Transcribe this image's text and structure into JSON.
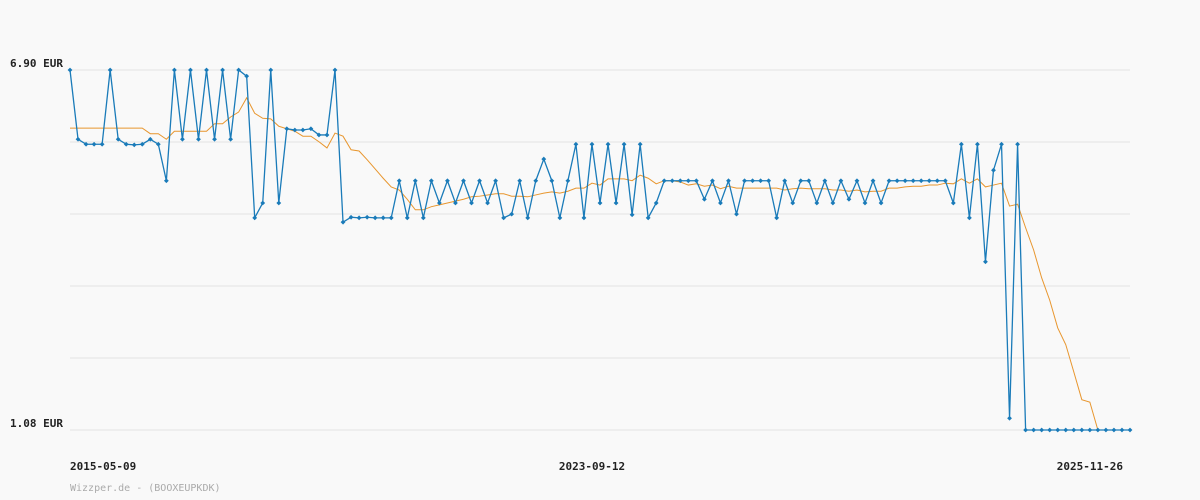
{
  "chart_data": {
    "type": "line",
    "source": "Wizzper.de - (BOOXEUPKDK)",
    "categories": [
      "2015-05-09",
      null,
      null,
      null,
      null,
      null,
      null,
      null,
      null,
      null,
      null,
      null,
      null,
      null,
      null,
      null,
      null,
      null,
      null,
      null,
      null,
      null,
      null,
      null,
      null,
      null,
      null,
      null,
      null,
      null,
      null,
      null,
      null,
      null,
      null,
      null,
      null,
      null,
      null,
      null,
      null,
      null,
      null,
      null,
      null,
      null,
      null,
      null,
      null,
      null,
      null,
      null,
      null,
      null,
      null,
      null,
      null,
      null,
      null,
      null,
      null,
      null,
      null,
      null,
      null,
      "2023-09-12",
      null,
      null,
      null,
      null,
      null,
      null,
      null,
      null,
      null,
      null,
      null,
      null,
      null,
      null,
      null,
      null,
      null,
      null,
      null,
      null,
      null,
      null,
      null,
      null,
      null,
      null,
      null,
      null,
      null,
      null,
      null,
      null,
      null,
      null,
      null,
      null,
      null,
      null,
      null,
      null,
      null,
      null,
      null,
      null,
      null,
      null,
      null,
      null,
      null,
      null,
      null,
      null,
      null,
      null,
      null,
      null,
      null,
      null,
      null,
      null,
      null,
      "2025-11-26",
      null,
      null,
      null,
      null,
      null
    ],
    "series": [
      {
        "color": "#1a7bb9",
        "markers": true,
        "values": [
          6.9,
          5.78,
          5.7,
          5.7,
          5.7,
          6.9,
          5.78,
          5.7,
          5.69,
          5.7,
          5.78,
          5.7,
          5.11,
          6.9,
          5.78,
          6.9,
          5.78,
          6.9,
          5.78,
          6.9,
          5.78,
          6.9,
          6.8,
          4.51,
          4.75,
          6.9,
          4.75,
          5.95,
          5.93,
          5.93,
          5.95,
          5.85,
          5.85,
          6.9,
          4.44,
          4.52,
          4.51,
          4.52,
          4.51,
          4.51,
          4.51,
          5.11,
          4.51,
          5.11,
          4.51,
          5.11,
          4.75,
          5.11,
          4.75,
          5.11,
          4.75,
          5.11,
          4.75,
          5.11,
          4.51,
          4.57,
          5.11,
          4.51,
          5.11,
          5.46,
          5.11,
          4.51,
          5.11,
          5.7,
          4.51,
          5.7,
          4.75,
          5.7,
          4.75,
          5.7,
          4.56,
          5.7,
          4.51,
          4.75,
          5.11,
          5.11,
          5.11,
          5.11,
          5.11,
          4.81,
          5.11,
          4.75,
          5.11,
          4.57,
          5.11,
          5.11,
          5.11,
          5.11,
          4.51,
          5.11,
          4.75,
          5.11,
          5.11,
          4.75,
          5.11,
          4.75,
          5.11,
          4.81,
          5.11,
          4.75,
          5.11,
          4.75,
          5.11,
          5.11,
          5.11,
          5.11,
          5.11,
          5.11,
          5.11,
          5.11,
          4.75,
          5.7,
          4.51,
          5.7,
          3.8,
          5.28,
          5.7,
          1.27,
          5.7,
          1.08,
          1.08,
          1.08,
          1.08,
          1.08,
          1.08,
          1.08,
          1.08,
          1.08,
          1.08,
          1.08,
          1.08,
          1.08,
          1.08
        ]
      },
      {
        "color": "#e8962e",
        "markers": false,
        "values": [
          5.96,
          5.96,
          5.96,
          5.96,
          5.96,
          5.96,
          5.96,
          5.96,
          5.96,
          5.96,
          5.87,
          5.87,
          5.78,
          5.91,
          5.91,
          5.91,
          5.91,
          5.91,
          6.03,
          6.03,
          6.14,
          6.22,
          6.45,
          6.2,
          6.12,
          6.11,
          5.99,
          5.95,
          5.91,
          5.83,
          5.83,
          5.74,
          5.64,
          5.88,
          5.83,
          5.61,
          5.59,
          5.45,
          5.3,
          5.15,
          5.01,
          4.96,
          4.81,
          4.64,
          4.64,
          4.69,
          4.72,
          4.75,
          4.78,
          4.81,
          4.85,
          4.86,
          4.88,
          4.9,
          4.9,
          4.86,
          4.86,
          4.85,
          4.88,
          4.91,
          4.93,
          4.91,
          4.94,
          4.99,
          4.99,
          5.07,
          5.04,
          5.14,
          5.14,
          5.14,
          5.11,
          5.2,
          5.15,
          5.06,
          5.11,
          5.11,
          5.09,
          5.04,
          5.06,
          5.02,
          5.04,
          4.98,
          5.02,
          4.99,
          4.99,
          4.99,
          4.99,
          4.99,
          4.99,
          4.96,
          4.98,
          4.99,
          4.98,
          4.98,
          4.98,
          4.96,
          4.96,
          4.94,
          4.96,
          4.93,
          4.94,
          4.94,
          4.99,
          4.99,
          5.01,
          5.02,
          5.02,
          5.04,
          5.04,
          5.07,
          5.06,
          5.14,
          5.07,
          5.14,
          5.01,
          5.04,
          5.07,
          4.7,
          4.73,
          4.35,
          3.99,
          3.54,
          3.18,
          2.73,
          2.46,
          2.02,
          1.57,
          1.53,
          1.08,
          1.08,
          1.08,
          1.08,
          1.08
        ]
      }
    ],
    "ylim": [
      1.08,
      6.9
    ],
    "yticks": [
      {
        "value": 6.9,
        "label": "6.90 EUR"
      },
      {
        "value": 1.08,
        "label": "1.08 EUR"
      }
    ],
    "ygrid": [
      6.9,
      5.736,
      4.572,
      3.408,
      2.244,
      1.08
    ],
    "grid": true
  }
}
